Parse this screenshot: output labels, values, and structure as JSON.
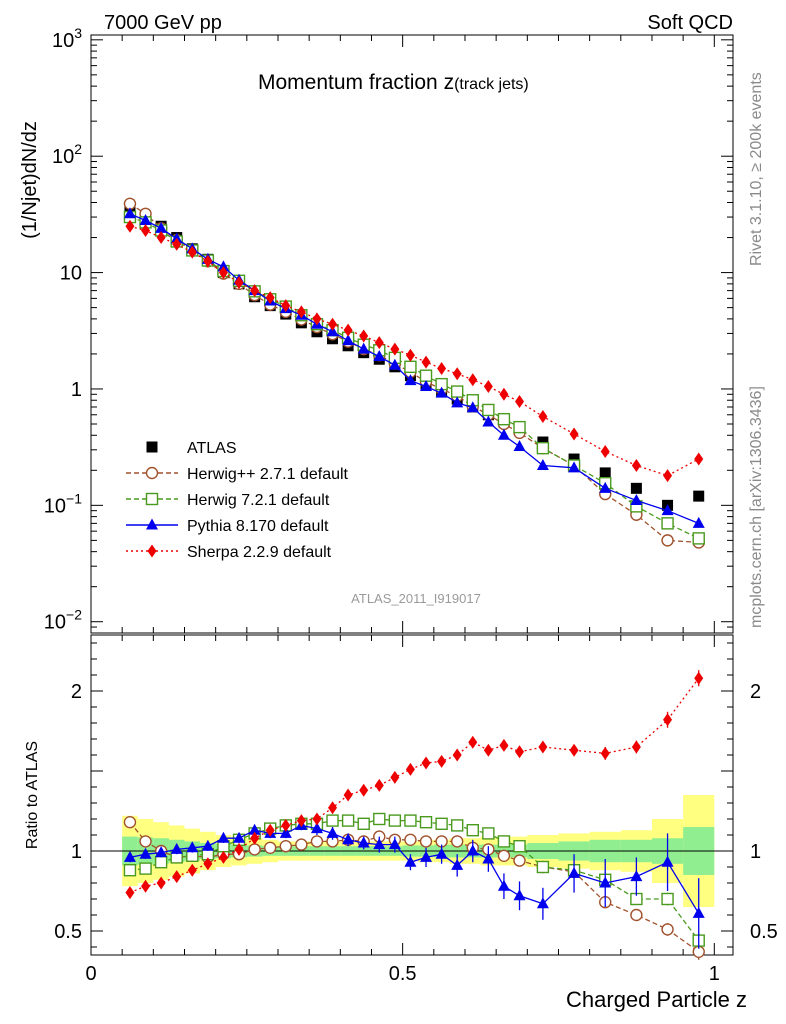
{
  "header": {
    "left": "7000 GeV pp",
    "right": "Soft QCD"
  },
  "side_labels": {
    "rivet": "Rivet 3.1.10, ≥ 200k events",
    "mcplots": "mcplots.cern.ch [arXiv:1306.3436]"
  },
  "watermark": "ATLAS_2011_I919017",
  "chart_data": [
    {
      "type": "scatter",
      "panel": "main",
      "title_main": "Momentum fraction z",
      "title_sub": "(track jets)",
      "ylabel": "(1/Njet)dN/dz",
      "yscale": "log",
      "ylim": [
        0.008,
        1100
      ],
      "xlim": [
        0,
        1.03
      ],
      "y_ticks": [
        {
          "value": 0.01,
          "mant": "10",
          "exp": "−2"
        },
        {
          "value": 0.1,
          "mant": "10",
          "exp": "−1"
        },
        {
          "value": 1,
          "mant": "1",
          "exp": ""
        },
        {
          "value": 10,
          "mant": "10",
          "exp": ""
        },
        {
          "value": 100,
          "mant": "10",
          "exp": "2"
        },
        {
          "value": 1000,
          "mant": "10",
          "exp": "3"
        }
      ],
      "series": [
        {
          "name": "ATLAS",
          "color": "#000000",
          "marker": "square-filled",
          "line": "none",
          "x": [
            0.0625,
            0.0875,
            0.1125,
            0.1375,
            0.1625,
            0.1875,
            0.2125,
            0.2375,
            0.2625,
            0.2875,
            0.3125,
            0.3375,
            0.3625,
            0.3875,
            0.4125,
            0.4375,
            0.4625,
            0.4875,
            0.5125,
            0.5375,
            0.5625,
            0.5875,
            0.6125,
            0.6375,
            0.6625,
            0.6875,
            0.725,
            0.775,
            0.825,
            0.875,
            0.925,
            0.975
          ],
          "y": [
            34,
            30,
            25,
            20,
            16,
            13,
            10,
            8,
            6.2,
            5.2,
            4.4,
            3.7,
            3.1,
            2.7,
            2.35,
            2.05,
            1.8,
            1.55,
            1.3,
            1.1,
            0.95,
            0.82,
            0.7,
            0.6,
            0.52,
            0.46,
            0.35,
            0.25,
            0.19,
            0.14,
            0.1,
            0.12
          ]
        },
        {
          "name": "Herwig++ 2.7.1 default",
          "color": "#a0522d",
          "marker": "circle-open",
          "line": "dashed",
          "x": [
            0.0625,
            0.0875,
            0.1125,
            0.1375,
            0.1625,
            0.1875,
            0.2125,
            0.2375,
            0.2625,
            0.2875,
            0.3125,
            0.3375,
            0.3625,
            0.3875,
            0.4125,
            0.4375,
            0.4625,
            0.4875,
            0.5125,
            0.5375,
            0.5625,
            0.5875,
            0.6125,
            0.6375,
            0.6625,
            0.6875,
            0.725,
            0.775,
            0.825,
            0.875,
            0.925,
            0.975
          ],
          "y": [
            39,
            32,
            24,
            19,
            15.5,
            12.5,
            9.8,
            8,
            6.4,
            5.3,
            4.6,
            3.95,
            3.4,
            2.95,
            2.55,
            2.2,
            1.95,
            1.65,
            1.4,
            1.15,
            1.0,
            0.87,
            0.71,
            0.6,
            0.5,
            0.42,
            0.31,
            0.22,
            0.125,
            0.083,
            0.05,
            0.048
          ]
        },
        {
          "name": "Herwig 7.2.1 default",
          "color": "#4a9a1e",
          "marker": "square-open",
          "line": "dashed",
          "x": [
            0.0625,
            0.0875,
            0.1125,
            0.1375,
            0.1625,
            0.1875,
            0.2125,
            0.2375,
            0.2625,
            0.2875,
            0.3125,
            0.3375,
            0.3625,
            0.3875,
            0.4125,
            0.4375,
            0.4625,
            0.4875,
            0.5125,
            0.5375,
            0.5625,
            0.5875,
            0.6125,
            0.6375,
            0.6625,
            0.6875,
            0.725,
            0.775,
            0.825,
            0.875,
            0.925,
            0.975
          ],
          "y": [
            30,
            27,
            23,
            18.5,
            15.5,
            12.7,
            10.3,
            8.5,
            6.9,
            5.9,
            5.1,
            4.3,
            3.6,
            3.2,
            2.75,
            2.4,
            2.15,
            1.85,
            1.55,
            1.3,
            1.1,
            0.95,
            0.8,
            0.66,
            0.55,
            0.47,
            0.31,
            0.22,
            0.155,
            0.098,
            0.07,
            0.052
          ]
        },
        {
          "name": "Pythia 8.170 default",
          "color": "#0000ee",
          "marker": "triangle-filled",
          "line": "solid",
          "x": [
            0.0625,
            0.0875,
            0.1125,
            0.1375,
            0.1625,
            0.1875,
            0.2125,
            0.2375,
            0.2625,
            0.2875,
            0.3125,
            0.3375,
            0.3625,
            0.3875,
            0.4125,
            0.4375,
            0.4625,
            0.4875,
            0.5125,
            0.5375,
            0.5625,
            0.5875,
            0.6125,
            0.6375,
            0.6625,
            0.6875,
            0.725,
            0.775,
            0.825,
            0.875,
            0.925,
            0.975
          ],
          "y": [
            32,
            28,
            24,
            19.5,
            16,
            13,
            11.2,
            8.6,
            7.0,
            5.7,
            4.9,
            4.3,
            3.6,
            3.1,
            2.6,
            2.2,
            1.9,
            1.6,
            1.18,
            1.05,
            0.92,
            0.76,
            0.69,
            0.52,
            0.4,
            0.32,
            0.22,
            0.21,
            0.14,
            0.11,
            0.09,
            0.07
          ]
        },
        {
          "name": "Sherpa 2.2.9 default",
          "color": "#ee0000",
          "marker": "diamond-filled",
          "line": "dotted",
          "x": [
            0.0625,
            0.0875,
            0.1125,
            0.1375,
            0.1625,
            0.1875,
            0.2125,
            0.2375,
            0.2625,
            0.2875,
            0.3125,
            0.3375,
            0.3625,
            0.3875,
            0.4125,
            0.4375,
            0.4625,
            0.4875,
            0.5125,
            0.5375,
            0.5625,
            0.5875,
            0.6125,
            0.6375,
            0.6625,
            0.6875,
            0.725,
            0.775,
            0.825,
            0.875,
            0.925,
            0.975
          ],
          "y": [
            25,
            23,
            20,
            17.5,
            15,
            12.5,
            10,
            8.2,
            7.0,
            6.1,
            5.2,
            4.6,
            4.0,
            3.6,
            3.2,
            2.85,
            2.5,
            2.2,
            1.95,
            1.7,
            1.5,
            1.35,
            1.2,
            1.05,
            0.9,
            0.78,
            0.58,
            0.41,
            0.29,
            0.22,
            0.18,
            0.25
          ]
        }
      ]
    },
    {
      "type": "scatter",
      "panel": "ratio",
      "ylabel": "Ratio to ATLAS",
      "xlabel": "Charged Particle z",
      "ylim": [
        0.35,
        2.35
      ],
      "xlim": [
        0,
        1.03
      ],
      "x_ticks": [
        {
          "value": 0,
          "label": "0"
        },
        {
          "value": 0.5,
          "label": "0.5"
        },
        {
          "value": 1,
          "label": "1"
        }
      ],
      "y_ticks": [
        {
          "value": 0.5,
          "label": "0.5"
        },
        {
          "value": 1,
          "label": "1"
        },
        {
          "value": 2,
          "label": "2"
        }
      ],
      "bands": {
        "x_edges": [
          0.05,
          0.075,
          0.1,
          0.125,
          0.15,
          0.175,
          0.2,
          0.225,
          0.25,
          0.275,
          0.3,
          0.325,
          0.35,
          0.375,
          0.4,
          0.425,
          0.45,
          0.475,
          0.5,
          0.525,
          0.55,
          0.575,
          0.6,
          0.625,
          0.65,
          0.675,
          0.7,
          0.75,
          0.8,
          0.85,
          0.9,
          0.95,
          1.0
        ],
        "inner_err": [
          0.09,
          0.085,
          0.08,
          0.07,
          0.06,
          0.05,
          0.045,
          0.04,
          0.035,
          0.03,
          0.03,
          0.03,
          0.03,
          0.03,
          0.03,
          0.03,
          0.03,
          0.03,
          0.035,
          0.035,
          0.04,
          0.04,
          0.04,
          0.04,
          0.04,
          0.04,
          0.05,
          0.06,
          0.07,
          0.07,
          0.08,
          0.15
        ],
        "outer_err": [
          0.22,
          0.2,
          0.18,
          0.16,
          0.14,
          0.12,
          0.1,
          0.09,
          0.08,
          0.07,
          0.06,
          0.06,
          0.06,
          0.06,
          0.06,
          0.06,
          0.06,
          0.06,
          0.06,
          0.07,
          0.07,
          0.08,
          0.08,
          0.09,
          0.09,
          0.09,
          0.1,
          0.11,
          0.12,
          0.13,
          0.2,
          0.35
        ],
        "inner_color": "#90ee90",
        "outer_color": "#ffff80"
      },
      "series": [
        {
          "name": "Herwig++ 2.7.1 default",
          "color": "#a0522d",
          "marker": "circle-open",
          "line": "dashed",
          "x": [
            0.0625,
            0.0875,
            0.1125,
            0.1375,
            0.1625,
            0.1875,
            0.2125,
            0.2375,
            0.2625,
            0.2875,
            0.3125,
            0.3375,
            0.3625,
            0.3875,
            0.4125,
            0.4375,
            0.4625,
            0.4875,
            0.5125,
            0.5375,
            0.5625,
            0.5875,
            0.6125,
            0.6375,
            0.6625,
            0.6875,
            0.725,
            0.775,
            0.825,
            0.875,
            0.925,
            0.975
          ],
          "y": [
            1.18,
            1.06,
            1.0,
            0.96,
            0.97,
            0.96,
            0.98,
            0.98,
            1.01,
            1.02,
            1.03,
            1.04,
            1.06,
            1.06,
            1.07,
            1.06,
            1.09,
            1.07,
            1.07,
            1.06,
            1.06,
            1.06,
            1.02,
            1.01,
            0.97,
            0.94,
            0.9,
            0.87,
            0.68,
            0.6,
            0.51,
            0.37
          ],
          "err": [
            0.02,
            0.02,
            0.02,
            0.02,
            0.02,
            0.02,
            0.02,
            0.02,
            0.02,
            0.02,
            0.02,
            0.02,
            0.02,
            0.02,
            0.02,
            0.02,
            0.02,
            0.02,
            0.02,
            0.02,
            0.02,
            0.02,
            0.02,
            0.02,
            0.02,
            0.02,
            0.02,
            0.02,
            0.03,
            0.03,
            0.04,
            0.05
          ]
        },
        {
          "name": "Herwig 7.2.1 default",
          "color": "#4a9a1e",
          "marker": "square-open",
          "line": "dashed",
          "x": [
            0.0625,
            0.0875,
            0.1125,
            0.1375,
            0.1625,
            0.1875,
            0.2125,
            0.2375,
            0.2625,
            0.2875,
            0.3125,
            0.3375,
            0.3625,
            0.3875,
            0.4125,
            0.4375,
            0.4625,
            0.4875,
            0.5125,
            0.5375,
            0.5625,
            0.5875,
            0.6125,
            0.6375,
            0.6625,
            0.6875,
            0.725,
            0.775,
            0.825,
            0.875,
            0.925,
            0.975
          ],
          "y": [
            0.88,
            0.89,
            0.93,
            0.96,
            0.97,
            0.98,
            1.03,
            1.07,
            1.11,
            1.14,
            1.16,
            1.17,
            1.17,
            1.19,
            1.19,
            1.17,
            1.2,
            1.19,
            1.19,
            1.18,
            1.17,
            1.16,
            1.13,
            1.11,
            1.06,
            1.03,
            0.9,
            0.88,
            0.82,
            0.7,
            0.7,
            0.44
          ],
          "err": [
            0.02,
            0.02,
            0.02,
            0.02,
            0.02,
            0.02,
            0.02,
            0.02,
            0.02,
            0.02,
            0.02,
            0.02,
            0.02,
            0.02,
            0.02,
            0.02,
            0.02,
            0.02,
            0.02,
            0.02,
            0.02,
            0.02,
            0.02,
            0.02,
            0.02,
            0.02,
            0.02,
            0.03,
            0.03,
            0.03,
            0.04,
            0.05
          ]
        },
        {
          "name": "Pythia 8.170 default",
          "color": "#0000ee",
          "marker": "triangle-filled",
          "line": "solid",
          "x": [
            0.0625,
            0.0875,
            0.1125,
            0.1375,
            0.1625,
            0.1875,
            0.2125,
            0.2375,
            0.2625,
            0.2875,
            0.3125,
            0.3375,
            0.3625,
            0.3875,
            0.4125,
            0.4375,
            0.4625,
            0.4875,
            0.5125,
            0.5375,
            0.5625,
            0.5875,
            0.6125,
            0.6375,
            0.6625,
            0.6875,
            0.725,
            0.775,
            0.825,
            0.875,
            0.925,
            0.975
          ],
          "y": [
            0.96,
            0.98,
            0.99,
            1.01,
            1.02,
            1.03,
            1.08,
            1.08,
            1.13,
            1.11,
            1.11,
            1.16,
            1.14,
            1.11,
            1.07,
            1.05,
            1.04,
            1.04,
            0.93,
            0.96,
            0.98,
            0.91,
            1.0,
            0.95,
            0.78,
            0.72,
            0.67,
            0.86,
            0.8,
            0.84,
            0.93,
            0.61
          ],
          "err": [
            0.03,
            0.03,
            0.03,
            0.03,
            0.03,
            0.03,
            0.03,
            0.03,
            0.03,
            0.03,
            0.03,
            0.03,
            0.04,
            0.04,
            0.04,
            0.04,
            0.05,
            0.05,
            0.05,
            0.06,
            0.06,
            0.07,
            0.07,
            0.08,
            0.08,
            0.09,
            0.1,
            0.12,
            0.15,
            0.12,
            0.18,
            0.22
          ]
        },
        {
          "name": "Sherpa 2.2.9 default",
          "color": "#ee0000",
          "marker": "diamond-filled",
          "line": "dotted",
          "x": [
            0.0625,
            0.0875,
            0.1125,
            0.1375,
            0.1625,
            0.1875,
            0.2125,
            0.2375,
            0.2625,
            0.2875,
            0.3125,
            0.3375,
            0.3625,
            0.3875,
            0.4125,
            0.4375,
            0.4625,
            0.4875,
            0.5125,
            0.5375,
            0.5625,
            0.5875,
            0.6125,
            0.6375,
            0.6625,
            0.6875,
            0.725,
            0.775,
            0.825,
            0.875,
            0.925,
            0.975
          ],
          "y": [
            0.74,
            0.78,
            0.8,
            0.84,
            0.88,
            0.92,
            0.96,
            1.01,
            1.08,
            1.13,
            1.16,
            1.19,
            1.2,
            1.27,
            1.35,
            1.38,
            1.41,
            1.46,
            1.51,
            1.55,
            1.56,
            1.6,
            1.68,
            1.63,
            1.66,
            1.62,
            1.65,
            1.63,
            1.61,
            1.65,
            1.82,
            2.08
          ],
          "err": [
            0.02,
            0.02,
            0.02,
            0.02,
            0.02,
            0.02,
            0.02,
            0.02,
            0.02,
            0.02,
            0.02,
            0.02,
            0.02,
            0.02,
            0.02,
            0.02,
            0.02,
            0.02,
            0.02,
            0.02,
            0.02,
            0.02,
            0.03,
            0.03,
            0.03,
            0.03,
            0.03,
            0.03,
            0.04,
            0.04,
            0.05,
            0.05
          ]
        }
      ]
    }
  ]
}
